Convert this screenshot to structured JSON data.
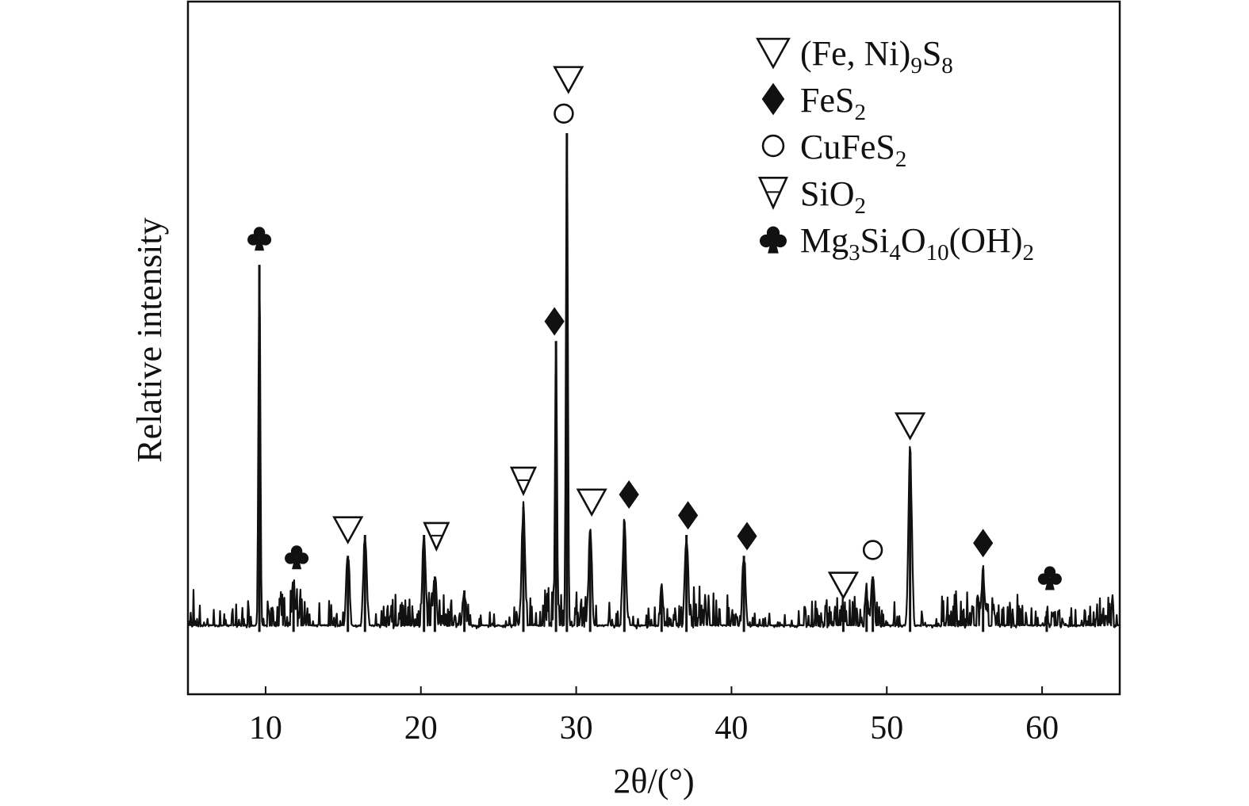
{
  "chart_data": {
    "type": "line",
    "title": "",
    "xlabel": "2θ/(°)",
    "ylabel": "Relative intensity",
    "xlim": [
      5,
      65
    ],
    "ylim": [
      0,
      100
    ],
    "x_ticks": [
      "10",
      "20",
      "30",
      "40",
      "50",
      "60"
    ],
    "y_ticks": [],
    "grid": false,
    "legend_position": "top-right",
    "baseline_intensity": 9,
    "series": [
      {
        "peaks": [
          {
            "x": 9.6,
            "y": 62
          },
          {
            "x": 11.8,
            "y": 16
          },
          {
            "x": 15.3,
            "y": 20
          },
          {
            "x": 16.4,
            "y": 23
          },
          {
            "x": 20.2,
            "y": 23
          },
          {
            "x": 20.9,
            "y": 17
          },
          {
            "x": 22.8,
            "y": 15
          },
          {
            "x": 26.6,
            "y": 27
          },
          {
            "x": 28.7,
            "y": 51
          },
          {
            "x": 29.4,
            "y": 81
          },
          {
            "x": 30.9,
            "y": 23
          },
          {
            "x": 33.1,
            "y": 25
          },
          {
            "x": 35.5,
            "y": 15
          },
          {
            "x": 37.1,
            "y": 23
          },
          {
            "x": 40.8,
            "y": 20
          },
          {
            "x": 47.2,
            "y": 11
          },
          {
            "x": 48.7,
            "y": 15
          },
          {
            "x": 49.1,
            "y": 17
          },
          {
            "x": 51.5,
            "y": 35
          },
          {
            "x": 56.2,
            "y": 18
          },
          {
            "x": 60.3,
            "y": 12
          }
        ]
      }
    ],
    "legend": [
      {
        "symbol": "triangle-down-open",
        "parts": [
          {
            "t": "(Fe, Ni)"
          },
          {
            "t": "9",
            "sub": true
          },
          {
            "t": "S"
          },
          {
            "t": "8",
            "sub": true
          }
        ]
      },
      {
        "symbol": "diamond-filled",
        "parts": [
          {
            "t": "FeS"
          },
          {
            "t": "2",
            "sub": true
          }
        ]
      },
      {
        "symbol": "circle-open",
        "parts": [
          {
            "t": "CuFeS"
          },
          {
            "t": "2",
            "sub": true
          }
        ]
      },
      {
        "symbol": "nabla-open",
        "parts": [
          {
            "t": "SiO"
          },
          {
            "t": "2",
            "sub": true
          }
        ]
      },
      {
        "symbol": "club-filled",
        "parts": [
          {
            "t": "Mg"
          },
          {
            "t": "3",
            "sub": true
          },
          {
            "t": "Si"
          },
          {
            "t": "4",
            "sub": true
          },
          {
            "t": "O"
          },
          {
            "t": "10",
            "sub": true
          },
          {
            "t": "(OH)"
          },
          {
            "t": "2",
            "sub": true
          }
        ]
      }
    ],
    "annotations": [
      {
        "symbol": "club-filled",
        "x": 9.6,
        "y": 64
      },
      {
        "symbol": "club-filled",
        "x": 12.0,
        "y": 18
      },
      {
        "symbol": "triangle-down-open",
        "x": 15.3,
        "y": 22
      },
      {
        "symbol": "nabla-open",
        "x": 21.0,
        "y": 21
      },
      {
        "symbol": "nabla-open",
        "x": 26.6,
        "y": 29
      },
      {
        "symbol": "diamond-filled",
        "x": 28.6,
        "y": 52
      },
      {
        "symbol": "circle-open",
        "x": 29.2,
        "y": 82
      },
      {
        "symbol": "triangle-down-open",
        "x": 29.5,
        "y": 87
      },
      {
        "symbol": "triangle-down-open",
        "x": 31.0,
        "y": 26
      },
      {
        "symbol": "diamond-filled",
        "x": 33.4,
        "y": 27
      },
      {
        "symbol": "diamond-filled",
        "x": 37.2,
        "y": 24
      },
      {
        "symbol": "diamond-filled",
        "x": 41.0,
        "y": 21
      },
      {
        "symbol": "triangle-down-open",
        "x": 47.2,
        "y": 14
      },
      {
        "symbol": "circle-open",
        "x": 49.1,
        "y": 19
      },
      {
        "symbol": "triangle-down-open",
        "x": 51.5,
        "y": 37
      },
      {
        "symbol": "diamond-filled",
        "x": 56.2,
        "y": 20
      },
      {
        "symbol": "club-filled",
        "x": 60.5,
        "y": 15
      }
    ]
  }
}
